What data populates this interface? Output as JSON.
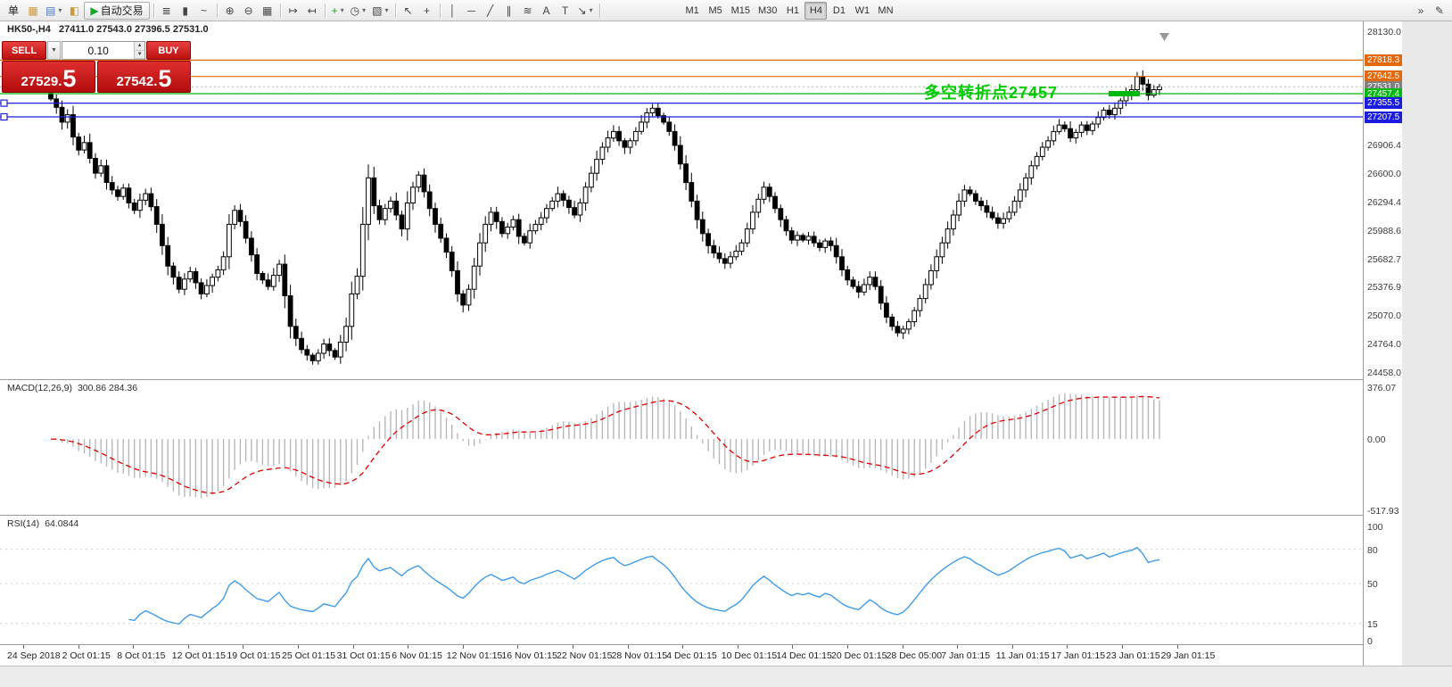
{
  "toolbar": {
    "items": [
      {
        "type": "text",
        "name": "new-order-button",
        "label": "单"
      },
      {
        "type": "icon",
        "name": "new-chart-icon",
        "glyph": "▦",
        "color": "#C89A3A"
      },
      {
        "type": "icon",
        "name": "profiles-icon",
        "glyph": "▤",
        "color": "#4A77B8",
        "caret": true
      },
      {
        "type": "icon",
        "name": "market-watch-icon",
        "glyph": "◧",
        "color": "#C89A3A"
      },
      {
        "type": "button",
        "name": "autotrading-button",
        "label": "自动交易",
        "glyph": "▶",
        "glyph_color": "#1FA32B"
      },
      {
        "type": "sep"
      },
      {
        "type": "icon",
        "name": "bar-chart-icon",
        "glyph": "≣"
      },
      {
        "type": "icon",
        "name": "candlestick-chart-icon",
        "glyph": "▮"
      },
      {
        "type": "icon",
        "name": "line-chart-icon",
        "glyph": "~"
      },
      {
        "type": "sep"
      },
      {
        "type": "icon",
        "name": "zoom-in-icon",
        "glyph": "⊕"
      },
      {
        "type": "icon",
        "name": "zoom-out-icon",
        "glyph": "⊖"
      },
      {
        "type": "icon",
        "name": "tile-windows-icon",
        "glyph": "▦"
      },
      {
        "type": "sep"
      },
      {
        "type": "icon",
        "name": "auto-scroll-icon",
        "glyph": "↦"
      },
      {
        "type": "icon",
        "name": "chart-shift-icon",
        "glyph": "↤"
      },
      {
        "type": "sep"
      },
      {
        "type": "icon",
        "name": "indicators-icon",
        "glyph": "+",
        "color": "#1FA32B",
        "caret": true
      },
      {
        "type": "icon",
        "name": "periods-icon",
        "glyph": "◷",
        "caret": true
      },
      {
        "type": "icon",
        "name": "templates-icon",
        "glyph": "▧",
        "caret": true
      },
      {
        "type": "sep"
      },
      {
        "type": "icon",
        "name": "cursor-icon",
        "glyph": "↖"
      },
      {
        "type": "icon",
        "name": "crosshair-icon",
        "glyph": "+"
      },
      {
        "type": "sep"
      },
      {
        "type": "icon",
        "name": "vertical-line-icon",
        "glyph": "│"
      },
      {
        "type": "icon",
        "name": "horizontal-line-icon",
        "glyph": "─"
      },
      {
        "type": "icon",
        "name": "trendline-icon",
        "glyph": "╱"
      },
      {
        "type": "icon",
        "name": "channel-icon",
        "glyph": "∥"
      },
      {
        "type": "icon",
        "name": "fibonacci-icon",
        "glyph": "≋"
      },
      {
        "type": "icon",
        "name": "text-icon",
        "glyph": "A"
      },
      {
        "type": "icon",
        "name": "label-icon",
        "glyph": "T"
      },
      {
        "type": "icon",
        "name": "arrows-icon",
        "glyph": "↘",
        "caret": true
      },
      {
        "type": "sep"
      },
      {
        "type": "space"
      }
    ],
    "periods": [
      {
        "label": "M1"
      },
      {
        "label": "M5"
      },
      {
        "label": "M15"
      },
      {
        "label": "M30"
      },
      {
        "label": "H1"
      },
      {
        "label": "H4",
        "active": true
      },
      {
        "label": "D1"
      },
      {
        "label": "W1"
      },
      {
        "label": "MN"
      }
    ],
    "right_items": [
      {
        "name": "toolbar-overflow-icon",
        "glyph": "»"
      },
      {
        "name": "toolbar-customize-icon",
        "glyph": "✎"
      }
    ]
  },
  "chart": {
    "symbol_period": "HK50-,H4",
    "ohlc_text": "27411.0 27543.0 27396.5 27531.0",
    "annotation": {
      "text": "多空转折点27457",
      "color": "#00CC00"
    }
  },
  "one_click": {
    "sell_label": "SELL",
    "buy_label": "BUY",
    "volume": "0.10",
    "bid_main": "27529.",
    "bid_big": "5",
    "ask_main": "27542.",
    "ask_big": "5"
  },
  "macd": {
    "title": "MACD(12,26,9)",
    "values": "300.86 284.36",
    "max": 376.07,
    "min": -517.93,
    "axis": [
      {
        "v": 376.07,
        "label": "376.07"
      },
      {
        "v": 0,
        "label": "0.00"
      },
      {
        "v": -517.93,
        "label": "-517.93"
      }
    ]
  },
  "rsi": {
    "title": "RSI(14)",
    "value": "64.0844",
    "axis": [
      {
        "v": 100,
        "label": "100"
      },
      {
        "v": 80,
        "label": "80"
      },
      {
        "v": 50,
        "label": "50"
      },
      {
        "v": 15,
        "label": "15"
      },
      {
        "v": 0,
        "label": "0"
      }
    ],
    "levels": [
      80,
      50,
      15
    ],
    "line_color": "#3E9BEA"
  },
  "time_axis": {
    "labels": [
      "24 Sep 2018",
      "2 Oct 01:15",
      "8 Oct 01:15",
      "12 Oct 01:15",
      "19 Oct 01:15",
      "25 Oct 01:15",
      "31 Oct 01:15",
      "6 Nov 01:15",
      "12 Nov 01:15",
      "16 Nov 01:15",
      "22 Nov 01:15",
      "28 Nov 01:15",
      "4 Dec 01:15",
      "10 Dec 01:15",
      "14 Dec 01:15",
      "20 Dec 01:15",
      "28 Dec 05:00",
      "7 Jan 01:15",
      "11 Jan 01:15",
      "17 Jan 01:15",
      "23 Jan 01:15",
      "29 Jan 01:15"
    ]
  },
  "chart_data": {
    "type": "candlestick",
    "symbol": "HK50-",
    "timeframe": "H4",
    "open": 27411.0,
    "high": 27543.0,
    "low": 27396.5,
    "close": 27531.0,
    "price_axis": {
      "min": 24458.0,
      "max": 28130.0,
      "labels": [
        {
          "price": 28130.0,
          "label": "28130.0"
        },
        {
          "price": 26906.4,
          "label": "26906.4"
        },
        {
          "price": 26600.0,
          "label": "26600.0"
        },
        {
          "price": 26294.4,
          "label": "26294.4"
        },
        {
          "price": 25988.6,
          "label": "25988.6"
        },
        {
          "price": 25682.7,
          "label": "25682.7"
        },
        {
          "price": 25376.9,
          "label": "25376.9"
        },
        {
          "price": 25070.0,
          "label": "25070.0"
        },
        {
          "price": 24764.0,
          "label": "24764.0"
        },
        {
          "price": 24458.0,
          "label": "24458.0"
        }
      ]
    },
    "hlines": [
      {
        "name": "resistance-line-1",
        "price": 27818.3,
        "label": "27818.3",
        "color": "#E3680A",
        "style": "solid"
      },
      {
        "name": "resistance-line-2",
        "price": 27642.5,
        "label": "27642.5",
        "color": "#E3680A",
        "style": "solid"
      },
      {
        "name": "current-price-line",
        "price": 27531.0,
        "label": "27531.0",
        "color": "#808080",
        "line_color": "#bdbdbd",
        "style": "dot"
      },
      {
        "name": "pivot-line-27457",
        "price": 27457.4,
        "label": "27457.4",
        "color": "#00B80E",
        "style": "solid",
        "thick": [
          1243,
          1278
        ]
      },
      {
        "name": "support-line-1",
        "price": 27355.5,
        "label": "27355.5",
        "color": "#1C1CE0",
        "style": "solid",
        "handle": true
      },
      {
        "name": "support-line-2",
        "price": 27207.5,
        "label": "27207.5",
        "color": "#1C1CE0",
        "style": "solid",
        "handle": true
      }
    ],
    "closes": [
      27400,
      27310,
      27150,
      27230,
      26990,
      26850,
      26930,
      26760,
      26600,
      26680,
      26500,
      26420,
      26350,
      26440,
      26280,
      26200,
      26310,
      26380,
      26240,
      26050,
      25820,
      25600,
      25480,
      25350,
      25460,
      25540,
      25420,
      25300,
      25390,
      25480,
      25560,
      25700,
      26050,
      26200,
      26080,
      25900,
      25720,
      25520,
      25450,
      25380,
      25500,
      25620,
      25280,
      24950,
      24820,
      24700,
      24640,
      24580,
      24660,
      24760,
      24690,
      24620,
      24780,
      24950,
      25300,
      25490,
      26050,
      26550,
      26250,
      26100,
      26220,
      26300,
      26150,
      26000,
      26280,
      26450,
      26580,
      26400,
      26220,
      26050,
      25900,
      25750,
      25550,
      25300,
      25180,
      25350,
      25600,
      25850,
      26050,
      26180,
      26080,
      25950,
      26020,
      26100,
      25920,
      25850,
      25980,
      26050,
      26120,
      26220,
      26300,
      26380,
      26310,
      26230,
      26150,
      26280,
      26450,
      26600,
      26750,
      26880,
      26980,
      27050,
      26950,
      26880,
      26950,
      27050,
      27150,
      27250,
      27300,
      27220,
      27150,
      27050,
      26900,
      26700,
      26500,
      26300,
      26100,
      25950,
      25820,
      25740,
      25680,
      25630,
      25700,
      25760,
      25850,
      26000,
      26180,
      26320,
      26450,
      26350,
      26220,
      26100,
      25980,
      25880,
      25930,
      25880,
      25920,
      25850,
      25800,
      25870,
      25820,
      25700,
      25560,
      25450,
      25380,
      25320,
      25400,
      25480,
      25380,
      25200,
      25050,
      24950,
      24880,
      24920,
      25000,
      25120,
      25250,
      25400,
      25550,
      25700,
      25850,
      26000,
      26150,
      26300,
      26420,
      26380,
      26300,
      26250,
      26180,
      26120,
      26060,
      26110,
      26180,
      26300,
      26420,
      26550,
      26680,
      26780,
      26880,
      26950,
      27050,
      27120,
      27080,
      26980,
      27040,
      27120,
      27060,
      27130,
      27200,
      27280,
      27230,
      27300,
      27380,
      27450,
      27500,
      27640,
      27560,
      27440,
      27500,
      27531
    ]
  }
}
